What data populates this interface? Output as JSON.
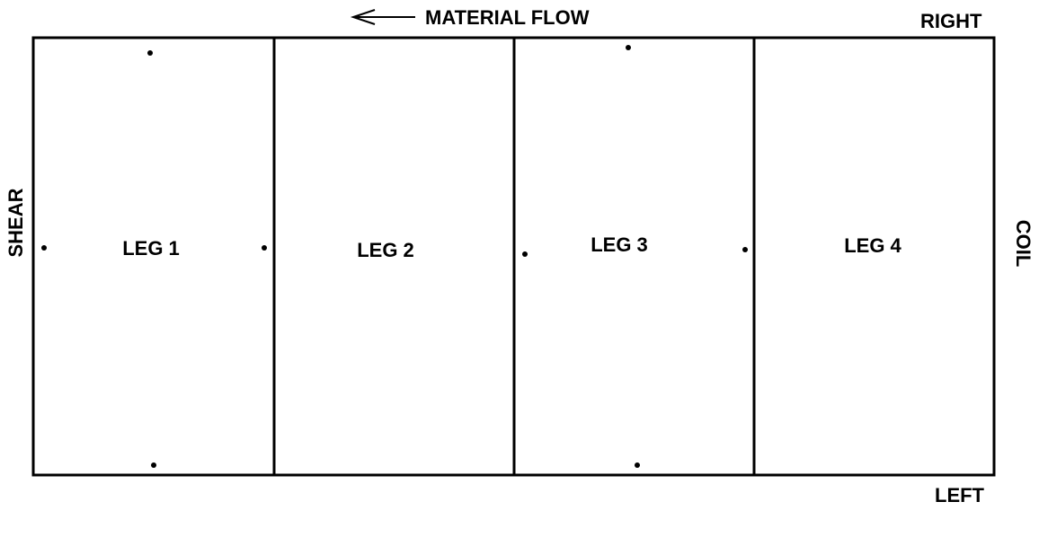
{
  "header": {
    "flow_label": "MATERIAL FLOW",
    "flow_arrow_icon": "arrow-left-icon"
  },
  "sides": {
    "right": "RIGHT",
    "left": "LEFT",
    "shear": "SHEAR",
    "coil": "COIL"
  },
  "legs": [
    {
      "label": "LEG 1"
    },
    {
      "label": "LEG 2"
    },
    {
      "label": "LEG 3"
    },
    {
      "label": "LEG 4"
    }
  ],
  "colors": {
    "line": "#000000",
    "background": "#ffffff"
  }
}
